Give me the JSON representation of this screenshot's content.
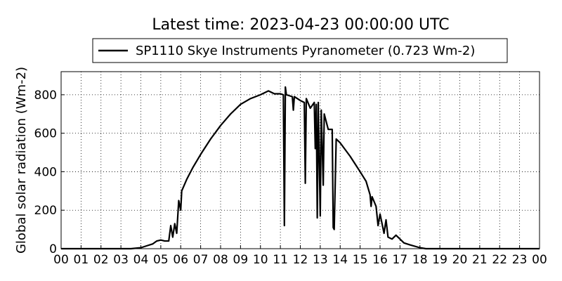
{
  "chart_data": {
    "type": "line",
    "title": "Latest time: 2023-04-23 00:00:00 UTC",
    "ylabel": "Global solar radiation (Wm-2)",
    "grid": true,
    "legend": "top",
    "xlim": [
      0,
      24
    ],
    "ylim": [
      0,
      920
    ],
    "xticks": [
      {
        "value": 0,
        "label": "00"
      },
      {
        "value": 1,
        "label": "01"
      },
      {
        "value": 2,
        "label": "02"
      },
      {
        "value": 3,
        "label": "03"
      },
      {
        "value": 4,
        "label": "04"
      },
      {
        "value": 5,
        "label": "05"
      },
      {
        "value": 6,
        "label": "06"
      },
      {
        "value": 7,
        "label": "07"
      },
      {
        "value": 8,
        "label": "08"
      },
      {
        "value": 9,
        "label": "09"
      },
      {
        "value": 10,
        "label": "10"
      },
      {
        "value": 11,
        "label": "11"
      },
      {
        "value": 12,
        "label": "12"
      },
      {
        "value": 13,
        "label": "13"
      },
      {
        "value": 14,
        "label": "14"
      },
      {
        "value": 15,
        "label": "15"
      },
      {
        "value": 16,
        "label": "16"
      },
      {
        "value": 17,
        "label": "17"
      },
      {
        "value": 18,
        "label": "18"
      },
      {
        "value": 19,
        "label": "19"
      },
      {
        "value": 20,
        "label": "20"
      },
      {
        "value": 21,
        "label": "21"
      },
      {
        "value": 22,
        "label": "22"
      },
      {
        "value": 23,
        "label": "23"
      },
      {
        "value": 24,
        "label": "00"
      }
    ],
    "yticks": [
      0,
      200,
      400,
      600,
      800
    ],
    "x": [
      0,
      3.5,
      4,
      4.3,
      4.6,
      4.8,
      5,
      5.2,
      5.4,
      5.5,
      5.6,
      5.7,
      5.8,
      5.9,
      6.0,
      6.05,
      6.3,
      6.6,
      7,
      7.5,
      8,
      8.5,
      9,
      9.5,
      10,
      10.4,
      10.7,
      11,
      11.15,
      11.2,
      11.25,
      11.3,
      11.6,
      11.65,
      11.7,
      12,
      12.2,
      12.25,
      12.3,
      12.5,
      12.7,
      12.75,
      12.8,
      12.85,
      12.9,
      13.0,
      13.05,
      13.15,
      13.2,
      13.4,
      13.6,
      13.65,
      13.7,
      13.8,
      14,
      14.5,
      15,
      15.3,
      15.5,
      15.55,
      15.6,
      15.8,
      15.9,
      16,
      16.2,
      16.3,
      16.4,
      16.6,
      16.8,
      17,
      17.2,
      17.5,
      18,
      18.3,
      24
    ],
    "series": [
      {
        "name": "SP1110 Skye Instruments Pyranometer (0.723 Wm-2)",
        "color": "#000000",
        "values": [
          0,
          0,
          5,
          15,
          25,
          40,
          45,
          40,
          40,
          120,
          60,
          130,
          80,
          250,
          200,
          300,
          360,
          420,
          490,
          570,
          640,
          700,
          750,
          780,
          800,
          820,
          805,
          805,
          800,
          120,
          840,
          800,
          790,
          720,
          790,
          770,
          760,
          340,
          780,
          730,
          760,
          520,
          750,
          160,
          760,
          170,
          720,
          330,
          700,
          620,
          620,
          110,
          100,
          570,
          550,
          480,
          400,
          350,
          280,
          220,
          270,
          220,
          120,
          180,
          80,
          150,
          60,
          50,
          70,
          50,
          30,
          20,
          5,
          0,
          0
        ]
      }
    ]
  }
}
